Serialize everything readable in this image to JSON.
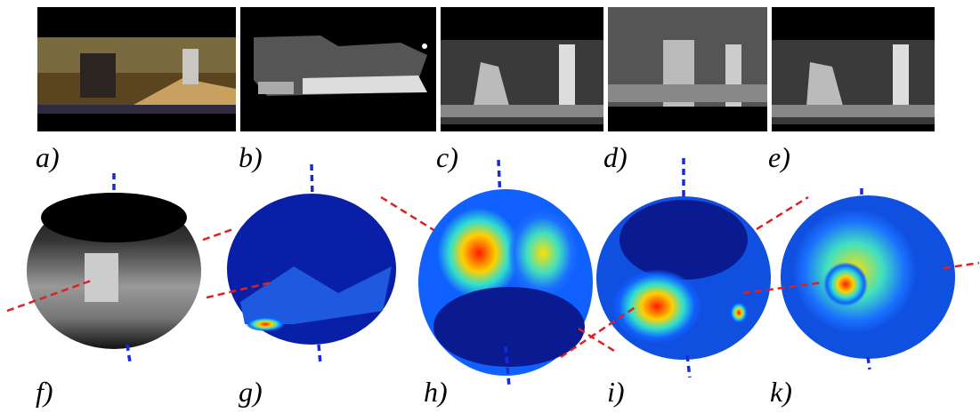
{
  "top_row": [
    {
      "label": "a)"
    },
    {
      "label": "b)"
    },
    {
      "label": "c)"
    },
    {
      "label": "d)"
    },
    {
      "label": "e)"
    }
  ],
  "bottom_row": [
    {
      "label": "f)"
    },
    {
      "label": "g)"
    },
    {
      "label": "h)"
    },
    {
      "label": "i)"
    },
    {
      "label": "k)"
    }
  ]
}
